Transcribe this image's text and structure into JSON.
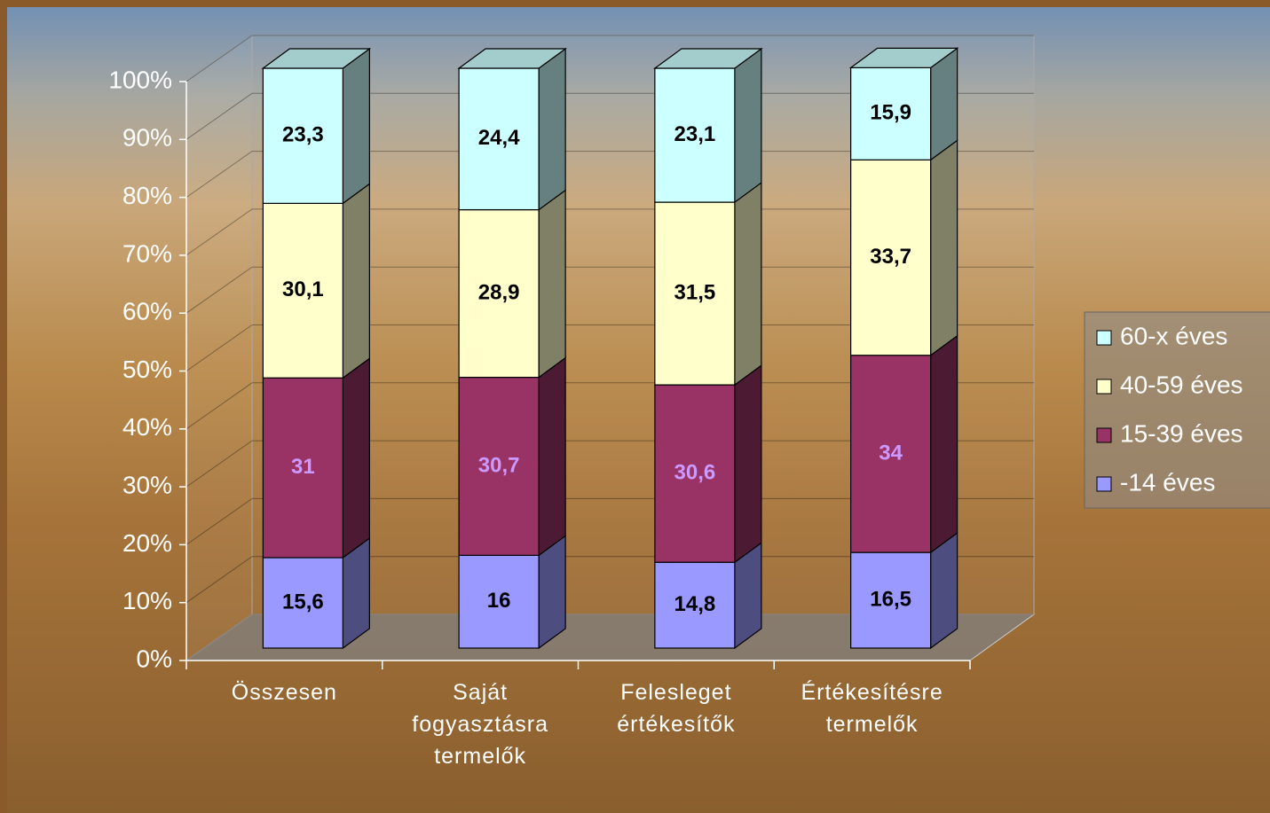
{
  "chart_data": {
    "type": "stacked-bar-3d",
    "categories": [
      "Összesen",
      "Saját fogyasztásra termelők",
      "Felesleget értékesítők",
      "Értékesítésre termelők"
    ],
    "series": [
      {
        "name": "-14 éves",
        "color": "#9999ff",
        "label_color": "#000000",
        "values": [
          15.6,
          16,
          14.8,
          16.5
        ],
        "value_labels": [
          "15,6",
          "16",
          "14,8",
          "16,5"
        ]
      },
      {
        "name": "15-39 éves",
        "color": "#993366",
        "label_color": "#cc99ff",
        "values": [
          31,
          30.7,
          30.6,
          34
        ],
        "value_labels": [
          "31",
          "30,7",
          "30,6",
          "34"
        ]
      },
      {
        "name": "40-59 éves",
        "color": "#ffffcc",
        "label_color": "#000000",
        "values": [
          30.1,
          28.9,
          31.5,
          33.7
        ],
        "value_labels": [
          "30,1",
          "28,9",
          "31,5",
          "33,7"
        ]
      },
      {
        "name": "60-x éves",
        "color": "#ccffff",
        "label_color": "#000000",
        "values": [
          23.3,
          24.4,
          23.1,
          15.9
        ],
        "value_labels": [
          "23,3",
          "24,4",
          "23,1",
          "15,9"
        ]
      }
    ],
    "ylim": [
      0,
      100
    ],
    "yticks": [
      {
        "value": 0,
        "label": "0%"
      },
      {
        "value": 10,
        "label": "10%"
      },
      {
        "value": 20,
        "label": "20%"
      },
      {
        "value": 30,
        "label": "30%"
      },
      {
        "value": 40,
        "label": "40%"
      },
      {
        "value": 50,
        "label": "50%"
      },
      {
        "value": 60,
        "label": "60%"
      },
      {
        "value": 70,
        "label": "70%"
      },
      {
        "value": 80,
        "label": "80%"
      },
      {
        "value": 90,
        "label": "90%"
      },
      {
        "value": 100,
        "label": "100%"
      }
    ],
    "grid": true,
    "legend": "right"
  }
}
